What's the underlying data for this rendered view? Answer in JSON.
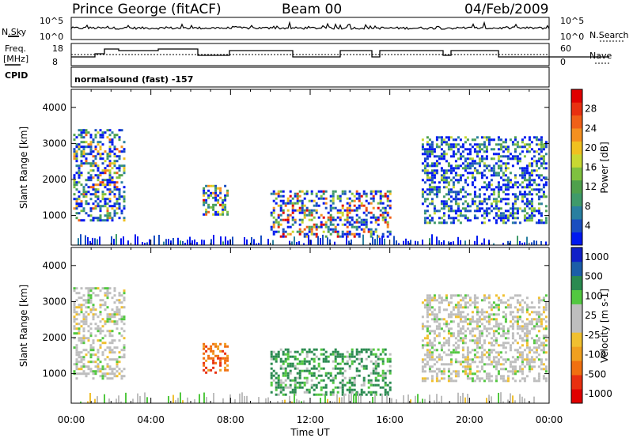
{
  "header": {
    "station": "Prince George (fitACF)",
    "beam": "Beam 00",
    "date": "04/Feb/2009"
  },
  "noise_panel": {
    "left_label": "N.Sky",
    "right_label": "N.Search",
    "left_ticks": [
      "10^5",
      "10^0"
    ],
    "right_ticks": [
      "10^5",
      "10^0"
    ]
  },
  "freq_panel": {
    "left_label_1": "Freq.",
    "left_label_2": "[MHz]",
    "right_label": "Nave",
    "left_ticks": [
      "18",
      "8"
    ],
    "right_ticks": [
      "60",
      "0"
    ]
  },
  "cpid": {
    "label": "CPID",
    "program": "normalsound (fast) -157"
  },
  "colors": {
    "power": [
      "#0018f0",
      "#1a4ec0",
      "#2a7fa0",
      "#3f9a6a",
      "#4fa04c",
      "#7fc13f",
      "#c8d832",
      "#f0c020",
      "#f59020",
      "#f06018",
      "#e83010",
      "#e00000"
    ],
    "velocity": [
      "#1020c8",
      "#1c5ea8",
      "#2a8a50",
      "#52c840",
      "#bebebe",
      "#bebebe",
      "#f0c030",
      "#f0a020",
      "#f07010",
      "#e83010",
      "#e00000"
    ]
  },
  "chart_data": [
    {
      "type": "heatmap",
      "name": "power",
      "ylabel": "Slant Range [km]",
      "ylim": [
        180,
        4500
      ],
      "xlim": [
        0,
        24
      ],
      "y_ticks": [
        "1000",
        "2000",
        "3000",
        "4000"
      ],
      "colorbar": {
        "label": "Power [dB]",
        "ticks": [
          "4",
          "8",
          "12",
          "16",
          "20",
          "24",
          "28"
        ]
      },
      "echo_regions": [
        {
          "t": [
            0.1,
            2.7
          ],
          "range": [
            900,
            3400
          ],
          "peak_db": 24
        },
        {
          "t": [
            6.6,
            7.9
          ],
          "range": [
            1000,
            1850
          ],
          "peak_db": 28
        },
        {
          "t": [
            10.0,
            16.0
          ],
          "range": [
            400,
            1700
          ],
          "peak_db": 28
        },
        {
          "t": [
            17.6,
            23.9
          ],
          "range": [
            800,
            3200
          ],
          "peak_db": 16
        }
      ]
    },
    {
      "type": "heatmap",
      "name": "velocity",
      "ylabel": "Slant Range [km]",
      "ylim": [
        180,
        4500
      ],
      "xlim": [
        0,
        24
      ],
      "y_ticks": [
        "1000",
        "2000",
        "3000",
        "4000"
      ],
      "xlabel": "Time UT",
      "x_ticks": [
        "00:00",
        "04:00",
        "08:00",
        "12:00",
        "16:00",
        "20:00",
        "00:00"
      ],
      "colorbar": {
        "label": "Velocity [m s-1]",
        "ticks": [
          "1000",
          "500",
          "100",
          "25",
          "-25",
          "-100",
          "-500",
          "-1000"
        ]
      },
      "echo_regions": [
        {
          "t": [
            0.1,
            2.7
          ],
          "range": [
            900,
            3400
          ],
          "velocity": 0
        },
        {
          "t": [
            6.6,
            7.9
          ],
          "range": [
            1000,
            1850
          ],
          "velocity": -300
        },
        {
          "t": [
            10.0,
            16.0
          ],
          "range": [
            400,
            1700
          ],
          "velocity": 200
        },
        {
          "t": [
            17.6,
            23.9
          ],
          "range": [
            800,
            3200
          ],
          "velocity": 0
        }
      ]
    }
  ]
}
